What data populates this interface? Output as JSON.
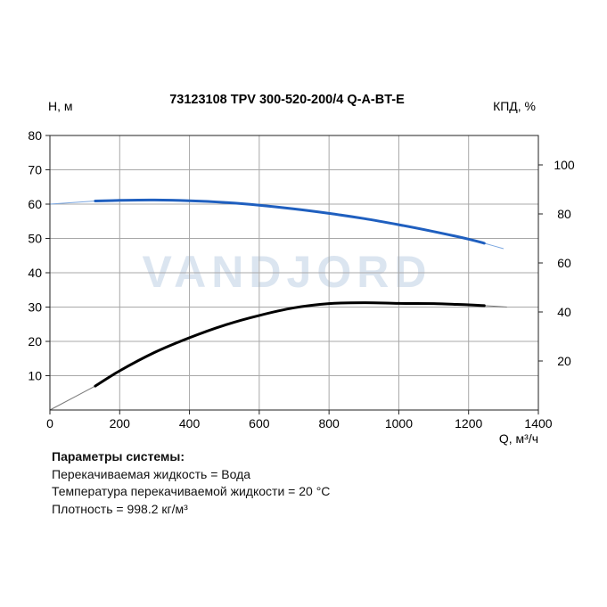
{
  "chart_data": {
    "type": "line",
    "title": "73123108 TPV 300-520-200/4 Q-A-BT-E",
    "xlabel": "Q, м³/ч",
    "ylabel": "H, м",
    "y2label": "КПД, %",
    "xlim": [
      0,
      1400
    ],
    "ylim": [
      0,
      80
    ],
    "y2lim": [
      0,
      112
    ],
    "x_ticks": [
      0,
      200,
      400,
      600,
      800,
      1000,
      1200,
      1400
    ],
    "y_ticks": [
      10,
      20,
      30,
      40,
      50,
      60,
      70,
      80
    ],
    "y2_ticks": [
      20,
      40,
      60,
      80,
      100
    ],
    "grid": true,
    "watermark": "VANDJORD",
    "series": [
      {
        "role": "head",
        "axis": "left",
        "color": "#1f5fbf",
        "extension_color": "#7aa6e0",
        "extension_left": [
          [
            0,
            60.0
          ],
          [
            130,
            60.9
          ]
        ],
        "x": [
          130,
          200,
          300,
          400,
          500,
          600,
          700,
          800,
          900,
          1000,
          1100,
          1200,
          1245
        ],
        "values": [
          60.9,
          61.1,
          61.2,
          61.0,
          60.5,
          59.7,
          58.6,
          57.3,
          55.8,
          54.0,
          52.0,
          49.8,
          48.6
        ],
        "extension_right": [
          [
            1245,
            48.6
          ],
          [
            1300,
            47.0
          ]
        ]
      },
      {
        "role": "efficiency",
        "axis": "right",
        "color": "#000000",
        "extension_color": "#777777",
        "extension_left": [
          [
            0,
            0
          ],
          [
            130,
            9.8
          ]
        ],
        "x": [
          130,
          200,
          300,
          400,
          500,
          600,
          700,
          800,
          900,
          1000,
          1100,
          1200,
          1245
        ],
        "values": [
          9.8,
          16.0,
          23.5,
          29.5,
          34.6,
          38.6,
          41.7,
          43.4,
          43.8,
          43.5,
          43.4,
          42.9,
          42.6
        ],
        "extension_right": [
          [
            1245,
            42.6
          ],
          [
            1310,
            42.0
          ]
        ]
      }
    ]
  },
  "params": {
    "heading": "Параметры системы:",
    "lines": [
      "Перекачиваемая жидкость = Вода",
      "Температура перекачиваемой жидкости = 20 °C",
      "Плотность = 998.2 кг/м³"
    ]
  }
}
